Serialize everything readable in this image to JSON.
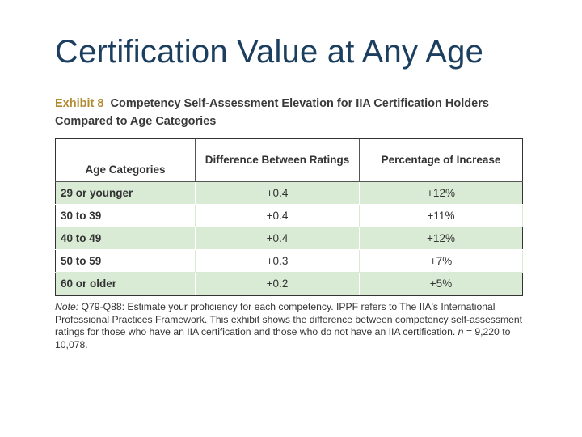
{
  "slide": {
    "title": "Certification Value at Any Age"
  },
  "exhibit": {
    "label": "Exhibit 8",
    "title": "Competency Self-Assessment Elevation for IIA Certification Holders Compared to Age Categories"
  },
  "table": {
    "headers": {
      "age": "Age Categories",
      "difference": "Difference Between Ratings",
      "percentage": "Percentage of Increase"
    },
    "rows": [
      {
        "age": "29 or younger",
        "difference": "+0.4",
        "percentage": "+12%"
      },
      {
        "age": "30 to 39",
        "difference": "+0.4",
        "percentage": "+11%"
      },
      {
        "age": "40 to 49",
        "difference": "+0.4",
        "percentage": "+12%"
      },
      {
        "age": "50 to 59",
        "difference": "+0.3",
        "percentage": "+7%"
      },
      {
        "age": "60 or older",
        "difference": "+0.2",
        "percentage": "+5%"
      }
    ]
  },
  "note": {
    "label": "Note:",
    "text1": "Q79-Q88: Estimate your proficiency for each competency. IPPF refers to The IIA's International Professional Practices Framework. This exhibit shows the difference between competency self-assessment ratings for those who have an IIA certification and those who do not have an IIA certification.",
    "n_label": "n",
    "n_text": "= 9,220 to 10,078."
  },
  "colors": {
    "title": "#1c3f5f",
    "exhibit_label": "#b08a2e",
    "row_fill": "#d9ebd5"
  }
}
